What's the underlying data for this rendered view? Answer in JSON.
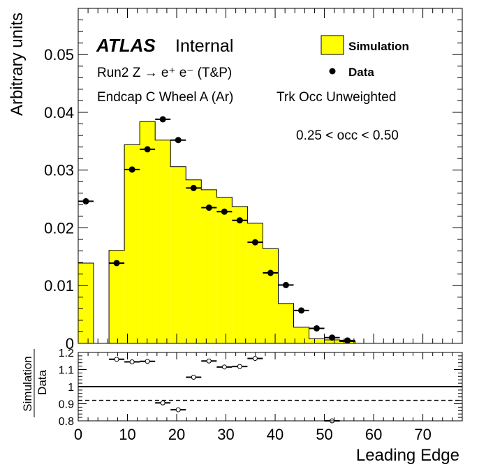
{
  "chart_data": [
    {
      "type": "bar",
      "panel": "main",
      "ylabel": "Arbitrary units",
      "xlim": [
        0,
        78
      ],
      "ylim": [
        0,
        0.058
      ],
      "yticks": [
        0,
        0.01,
        0.02,
        0.03,
        0.04,
        0.05
      ],
      "ytick_labels": [
        "0",
        "0.01",
        "0.02",
        "0.03",
        "0.04",
        "0.05"
      ],
      "xticks": [
        0,
        10,
        20,
        30,
        40,
        50,
        60,
        70
      ],
      "experiment_label": "ATLAS",
      "status_label": "Internal",
      "lines": [
        "Run2 Z → e⁺ e⁻ (T&P)",
        "Endcap C Wheel A (Ar)",
        "Trk Occ Unweighted",
        "0.25 < occ < 0.50"
      ],
      "grid": false,
      "legend_position": "top-right",
      "legend": [
        {
          "label": "Simulation",
          "style": "filled-box",
          "color": "#ffff00"
        },
        {
          "label": "Data",
          "style": "marker",
          "color": "#000000"
        }
      ],
      "bin_edges": [
        0,
        3.125,
        6.25,
        9.375,
        12.5,
        15.625,
        18.75,
        21.875,
        25,
        28.125,
        31.25,
        34.375,
        37.5,
        40.625,
        43.75,
        46.875,
        50,
        53.125,
        56.25,
        59.375,
        62.5,
        65.625,
        68.75,
        71.875,
        75,
        78.125
      ],
      "series": [
        {
          "name": "Simulation",
          "kind": "histogram",
          "color": "#ffff00",
          "values": [
            0.0139,
            0,
            0.0161,
            0.0344,
            0.0384,
            0.0352,
            0.0306,
            0.0283,
            0.0266,
            0.0253,
            0.0237,
            0.0208,
            0.0164,
            0.0069,
            0.0028,
            0.0008,
            0.0006,
            0.0003,
            0,
            0,
            0,
            0,
            0,
            0,
            0
          ]
        },
        {
          "name": "Data",
          "kind": "points",
          "color": "#000000",
          "x": [
            1.5625,
            7.8125,
            10.9375,
            14.0625,
            17.1875,
            20.3125,
            23.4375,
            26.5625,
            29.6875,
            32.8125,
            35.9375,
            39.0625,
            42.1875,
            45.3125,
            48.4375,
            51.5625,
            54.6875
          ],
          "values": [
            0.0246,
            0.0139,
            0.0301,
            0.0336,
            0.0388,
            0.0352,
            0.0269,
            0.0235,
            0.0228,
            0.0213,
            0.0175,
            0.0122,
            0.0101,
            0.0057,
            0.0026,
            0.001,
            0.0005
          ]
        }
      ]
    },
    {
      "type": "scatter",
      "panel": "ratio",
      "ylabel_top": "Simulation",
      "ylabel_bottom": "Data",
      "xlabel": "Leading Edge",
      "xlim": [
        0,
        78
      ],
      "ylim": [
        0.8,
        1.2
      ],
      "yticks": [
        0.8,
        0.9,
        1,
        1.1,
        1.2
      ],
      "ytick_labels": [
        "0.8",
        "0.9",
        "1",
        "1.1",
        "1.2"
      ],
      "xticks": [
        0,
        10,
        20,
        30,
        40,
        50,
        60,
        70
      ],
      "xtick_labels": [
        "0",
        "10",
        "20",
        "30",
        "40",
        "50",
        "60",
        "70"
      ],
      "reference_lines": [
        {
          "y": 1.0,
          "style": "solid"
        },
        {
          "y": 0.92,
          "style": "dashed"
        }
      ],
      "x": [
        7.8125,
        10.9375,
        14.0625,
        17.1875,
        20.3125,
        23.4375,
        26.5625,
        29.6875,
        32.8125,
        35.9375,
        51.5625
      ],
      "values": [
        1.16,
        1.145,
        1.148,
        0.905,
        0.865,
        1.055,
        1.15,
        1.115,
        1.118,
        1.165,
        0.8
      ]
    }
  ]
}
